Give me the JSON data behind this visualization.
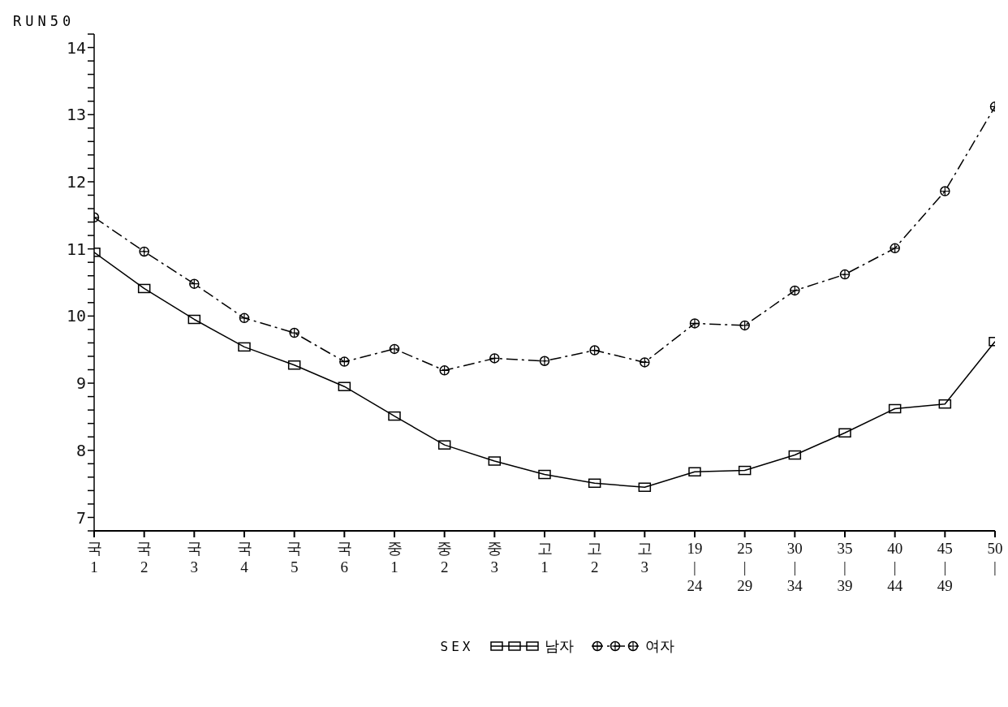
{
  "chart_data": {
    "type": "line",
    "ylabel": "RUN50",
    "legend_title": "SEX",
    "legend": "bottom",
    "grid": false,
    "categories": [
      "국\n1",
      "국\n2",
      "국\n3",
      "국\n4",
      "국\n5",
      "국\n6",
      "중\n1",
      "중\n2",
      "중\n3",
      "고\n1",
      "고\n2",
      "고\n3",
      "19\n|\n24",
      "25\n|\n29",
      "30\n|\n34",
      "35\n|\n39",
      "40\n|\n44",
      "45\n|\n49",
      "50\n|"
    ],
    "series": [
      {
        "name": "남자",
        "color": "#000000",
        "marker": "square",
        "line_style": "solid",
        "values": [
          10.95,
          10.41,
          9.95,
          9.54,
          9.27,
          8.95,
          8.51,
          8.08,
          7.84,
          7.64,
          7.51,
          7.45,
          7.68,
          7.7,
          7.93,
          8.26,
          8.62,
          8.69,
          9.62
        ]
      },
      {
        "name": "여자",
        "color": "#000000",
        "marker": "circle",
        "line_style": "dashed",
        "values": [
          11.47,
          10.96,
          10.48,
          9.97,
          9.75,
          9.32,
          9.51,
          9.19,
          9.37,
          9.33,
          9.49,
          9.31,
          9.89,
          9.86,
          10.38,
          10.62,
          11.01,
          11.86,
          13.12
        ]
      }
    ],
    "ylim": [
      6.8,
      14.2
    ],
    "yticks": [
      {
        "value": 6.8,
        "label": null
      },
      7,
      {
        "value": 7.2,
        "label": null
      },
      {
        "value": 7.4,
        "label": null
      },
      {
        "value": 7.6,
        "label": null
      },
      {
        "value": 7.8,
        "label": null
      },
      8,
      {
        "value": 8.2,
        "label": null
      },
      {
        "value": 8.4,
        "label": null
      },
      {
        "value": 8.6,
        "label": null
      },
      {
        "value": 8.8,
        "label": null
      },
      9,
      {
        "value": 9.2,
        "label": null
      },
      {
        "value": 9.4,
        "label": null
      },
      {
        "value": 9.6,
        "label": null
      },
      {
        "value": 9.8,
        "label": null
      },
      10,
      {
        "value": 10.2,
        "label": null
      },
      {
        "value": 10.4,
        "label": null
      },
      {
        "value": 10.6,
        "label": null
      },
      {
        "value": 10.8,
        "label": null
      },
      11,
      {
        "value": 11.2,
        "label": null
      },
      {
        "value": 11.4,
        "label": null
      },
      {
        "value": 11.6,
        "label": null
      },
      {
        "value": 11.8,
        "label": null
      },
      12,
      {
        "value": 12.2,
        "label": null
      },
      {
        "value": 12.4,
        "label": null
      },
      {
        "value": 12.6,
        "label": null
      },
      {
        "value": 12.8,
        "label": null
      },
      13,
      {
        "value": 13.2,
        "label": null
      },
      {
        "value": 13.4,
        "label": null
      },
      {
        "value": 13.6,
        "label": null
      },
      {
        "value": 13.8,
        "label": null
      },
      14,
      {
        "value": 14.2,
        "label": null
      }
    ]
  }
}
